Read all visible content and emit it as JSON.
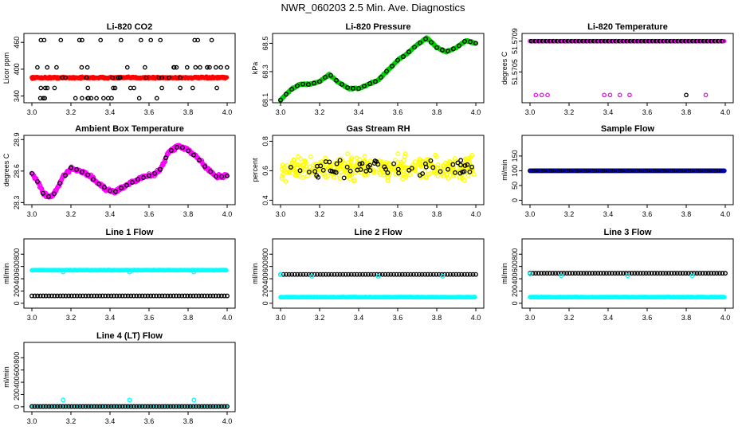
{
  "page_title": "NWR_060203  2.5 Min. Ave. Diagnostics",
  "colors": {
    "red": "#ff0000",
    "green": "#00cc00",
    "magenta": "#ff00ff",
    "yellow": "#ffff00",
    "blue": "#0000cc",
    "cyan": "#00ffff",
    "black": "#000000"
  },
  "chart_data": [
    {
      "id": "co2",
      "type": "scatter",
      "title": "Li-820 CO2",
      "ylabel": "Licor ppm",
      "xlim": [
        3.0,
        4.0
      ],
      "ylim": [
        325,
        480
      ],
      "x_ticks": [
        "3.0",
        "3.2",
        "3.4",
        "3.6",
        "3.8",
        "4.0"
      ],
      "y_ticks": [
        "340",
        "400",
        "460"
      ],
      "y_tick_values": [
        340,
        400,
        460
      ],
      "series": [
        {
          "name": "dense",
          "color": "#ff0000",
          "shape": "band",
          "description": "dense band centered ~381 ppm"
        },
        {
          "name": "reference",
          "color": "#000000",
          "shape": "ring",
          "levels": [
            335,
            358,
            381,
            404,
            465
          ]
        }
      ]
    },
    {
      "id": "pressure",
      "type": "scatter",
      "title": "Li-820 Pressure",
      "ylabel": "kPa",
      "xlim": [
        3.0,
        4.0
      ],
      "ylim": [
        68.08,
        68.57
      ],
      "x_ticks": [
        "3.0",
        "3.2",
        "3.4",
        "3.6",
        "3.8",
        "4.0"
      ],
      "y_ticks": [
        "68.1",
        "68.3",
        "68.5"
      ],
      "y_tick_values": [
        68.1,
        68.3,
        68.5
      ],
      "curve": [
        [
          3.0,
          68.1
        ],
        [
          3.05,
          68.17
        ],
        [
          3.1,
          68.21
        ],
        [
          3.15,
          68.21
        ],
        [
          3.2,
          68.23
        ],
        [
          3.25,
          68.28
        ],
        [
          3.3,
          68.22
        ],
        [
          3.35,
          68.18
        ],
        [
          3.4,
          68.18
        ],
        [
          3.45,
          68.21
        ],
        [
          3.5,
          68.24
        ],
        [
          3.55,
          68.31
        ],
        [
          3.6,
          68.38
        ],
        [
          3.65,
          68.43
        ],
        [
          3.7,
          68.49
        ],
        [
          3.75,
          68.54
        ],
        [
          3.8,
          68.47
        ],
        [
          3.85,
          68.44
        ],
        [
          3.9,
          68.47
        ],
        [
          3.95,
          68.52
        ],
        [
          4.0,
          68.5
        ]
      ],
      "series": [
        {
          "name": "pressure",
          "color": "#00cc00"
        },
        {
          "name": "reference",
          "color": "#000000"
        }
      ]
    },
    {
      "id": "temperature",
      "type": "scatter",
      "title": "Li-820 Temperature",
      "ylabel": "degrees C",
      "xlim": [
        3.0,
        4.0
      ],
      "ylim": [
        51.5701,
        51.571
      ],
      "x_ticks": [
        "3.0",
        "3.2",
        "3.4",
        "3.6",
        "3.8",
        "4.0"
      ],
      "y_ticks": [
        "51.5705",
        "51.5709"
      ],
      "y_tick_values": [
        51.5705,
        51.5709
      ],
      "series": [
        {
          "name": "upper",
          "color": "#ff00ff",
          "value": 51.5709
        },
        {
          "name": "lower",
          "color": "#ff00ff",
          "value": 51.5702,
          "x": [
            3.03,
            3.06,
            3.09,
            3.38,
            3.41,
            3.46,
            3.51,
            3.9
          ]
        },
        {
          "name": "reference-lower",
          "color": "#000000",
          "value": 51.5702,
          "x": [
            3.8
          ]
        }
      ]
    },
    {
      "id": "boxtemp",
      "type": "scatter",
      "title": "Ambient Box Temperature",
      "ylabel": "degrees C",
      "xlim": [
        3.0,
        4.0
      ],
      "ylim": [
        28.28,
        28.94
      ],
      "x_ticks": [
        "3.0",
        "3.2",
        "3.4",
        "3.6",
        "3.8",
        "4.0"
      ],
      "y_ticks": [
        "28.3",
        "28.6",
        "28.9"
      ],
      "y_tick_values": [
        28.3,
        28.6,
        28.9
      ],
      "curve": [
        [
          3.0,
          28.58
        ],
        [
          3.03,
          28.5
        ],
        [
          3.06,
          28.38
        ],
        [
          3.09,
          28.35
        ],
        [
          3.12,
          28.4
        ],
        [
          3.16,
          28.54
        ],
        [
          3.2,
          28.63
        ],
        [
          3.25,
          28.6
        ],
        [
          3.3,
          28.55
        ],
        [
          3.34,
          28.48
        ],
        [
          3.38,
          28.42
        ],
        [
          3.42,
          28.4
        ],
        [
          3.46,
          28.44
        ],
        [
          3.5,
          28.48
        ],
        [
          3.54,
          28.52
        ],
        [
          3.58,
          28.55
        ],
        [
          3.62,
          28.56
        ],
        [
          3.66,
          28.62
        ],
        [
          3.7,
          28.78
        ],
        [
          3.75,
          28.84
        ],
        [
          3.8,
          28.8
        ],
        [
          3.85,
          28.72
        ],
        [
          3.9,
          28.62
        ],
        [
          3.94,
          28.55
        ],
        [
          3.97,
          28.55
        ],
        [
          4.0,
          28.56
        ]
      ],
      "series": [
        {
          "name": "box",
          "color": "#ff00ff"
        },
        {
          "name": "reference",
          "color": "#000000"
        }
      ]
    },
    {
      "id": "rh",
      "type": "scatter",
      "title": "Gas Stream RH",
      "ylabel": "percent",
      "xlim": [
        3.0,
        4.0
      ],
      "ylim": [
        0.37,
        0.84
      ],
      "x_ticks": [
        "3.0",
        "3.2",
        "3.4",
        "3.6",
        "3.8",
        "4.0"
      ],
      "y_ticks": [
        "0.4",
        "0.6",
        "0.8"
      ],
      "y_tick_values": [
        0.4,
        0.6,
        0.8
      ],
      "series": [
        {
          "name": "rh",
          "color": "#ffff00",
          "center": 0.62
        },
        {
          "name": "reference",
          "color": "#000000"
        }
      ]
    },
    {
      "id": "sampleflow",
      "type": "scatter",
      "title": "Sample Flow",
      "ylabel": "ml/min",
      "xlim": [
        3.0,
        4.0
      ],
      "ylim": [
        -15,
        220
      ],
      "x_ticks": [
        "3.0",
        "3.2",
        "3.4",
        "3.6",
        "3.8",
        "4.0"
      ],
      "y_ticks": [
        "0",
        "50",
        "100",
        "150"
      ],
      "y_tick_values": [
        0,
        50,
        100,
        150
      ],
      "series": [
        {
          "name": "sample",
          "color": "#0000cc",
          "value": 100
        },
        {
          "name": "reference",
          "color": "#000000",
          "value": 100
        }
      ]
    },
    {
      "id": "line1",
      "type": "scatter",
      "title": "Line 1 Flow",
      "ylabel": "ml/min",
      "xlim": [
        3.0,
        4.0
      ],
      "ylim": [
        -80,
        1050
      ],
      "x_ticks": [
        "3.0",
        "3.2",
        "3.4",
        "3.6",
        "3.8",
        "4.0"
      ],
      "y_ticks": [
        "0",
        "200",
        "400",
        "600",
        "800"
      ],
      "y_tick_values": [
        0,
        200,
        400,
        600,
        800
      ],
      "series": [
        {
          "name": "line1",
          "color": "#00ffff",
          "value": 540,
          "outliers": [
            [
              3.16,
              510
            ],
            [
              3.5,
              510
            ],
            [
              3.83,
              510
            ]
          ]
        },
        {
          "name": "reference",
          "color": "#000000",
          "value": 120
        }
      ]
    },
    {
      "id": "line2",
      "type": "scatter",
      "title": "Line 2 Flow",
      "ylabel": "ml/min",
      "xlim": [
        3.0,
        4.0
      ],
      "ylim": [
        -80,
        1050
      ],
      "x_ticks": [
        "3.0",
        "3.2",
        "3.4",
        "3.6",
        "3.8",
        "4.0"
      ],
      "y_ticks": [
        "0",
        "200",
        "400",
        "600",
        "800"
      ],
      "y_tick_values": [
        0,
        200,
        400,
        600,
        800
      ],
      "series": [
        {
          "name": "line2",
          "color": "#00ffff",
          "value": 100,
          "outliers": [
            [
              3.0,
              470
            ],
            [
              3.16,
              440
            ],
            [
              3.5,
              440
            ],
            [
              3.83,
              440
            ]
          ]
        },
        {
          "name": "reference",
          "color": "#000000",
          "value": 470
        }
      ]
    },
    {
      "id": "line3",
      "type": "scatter",
      "title": "Line 3 Flow",
      "ylabel": "ml/min",
      "xlim": [
        3.0,
        4.0
      ],
      "ylim": [
        -80,
        1050
      ],
      "x_ticks": [
        "3.0",
        "3.2",
        "3.4",
        "3.6",
        "3.8",
        "4.0"
      ],
      "y_ticks": [
        "0",
        "200",
        "400",
        "600",
        "800"
      ],
      "y_tick_values": [
        0,
        200,
        400,
        600,
        800
      ],
      "series": [
        {
          "name": "line3",
          "color": "#00ffff",
          "value": 100,
          "outliers": [
            [
              3.0,
              480
            ],
            [
              3.16,
              450
            ],
            [
              3.5,
              450
            ],
            [
              3.83,
              450
            ]
          ]
        },
        {
          "name": "reference",
          "color": "#000000",
          "value": 490
        }
      ]
    },
    {
      "id": "line4",
      "type": "scatter",
      "title": "Line 4 (LT) Flow",
      "ylabel": "ml/min",
      "xlim": [
        3.0,
        4.0
      ],
      "ylim": [
        -80,
        1050
      ],
      "x_ticks": [
        "3.0",
        "3.2",
        "3.4",
        "3.6",
        "3.8",
        "4.0"
      ],
      "y_ticks": [
        "0",
        "200",
        "400",
        "600",
        "800"
      ],
      "y_tick_values": [
        0,
        200,
        400,
        600,
        800
      ],
      "series": [
        {
          "name": "line4",
          "color": "#00ffff",
          "value": 5,
          "outliers": [
            [
              3.16,
              110
            ],
            [
              3.5,
              110
            ],
            [
              3.83,
              110
            ]
          ]
        },
        {
          "name": "reference",
          "color": "#000000",
          "value": 5
        }
      ]
    }
  ]
}
